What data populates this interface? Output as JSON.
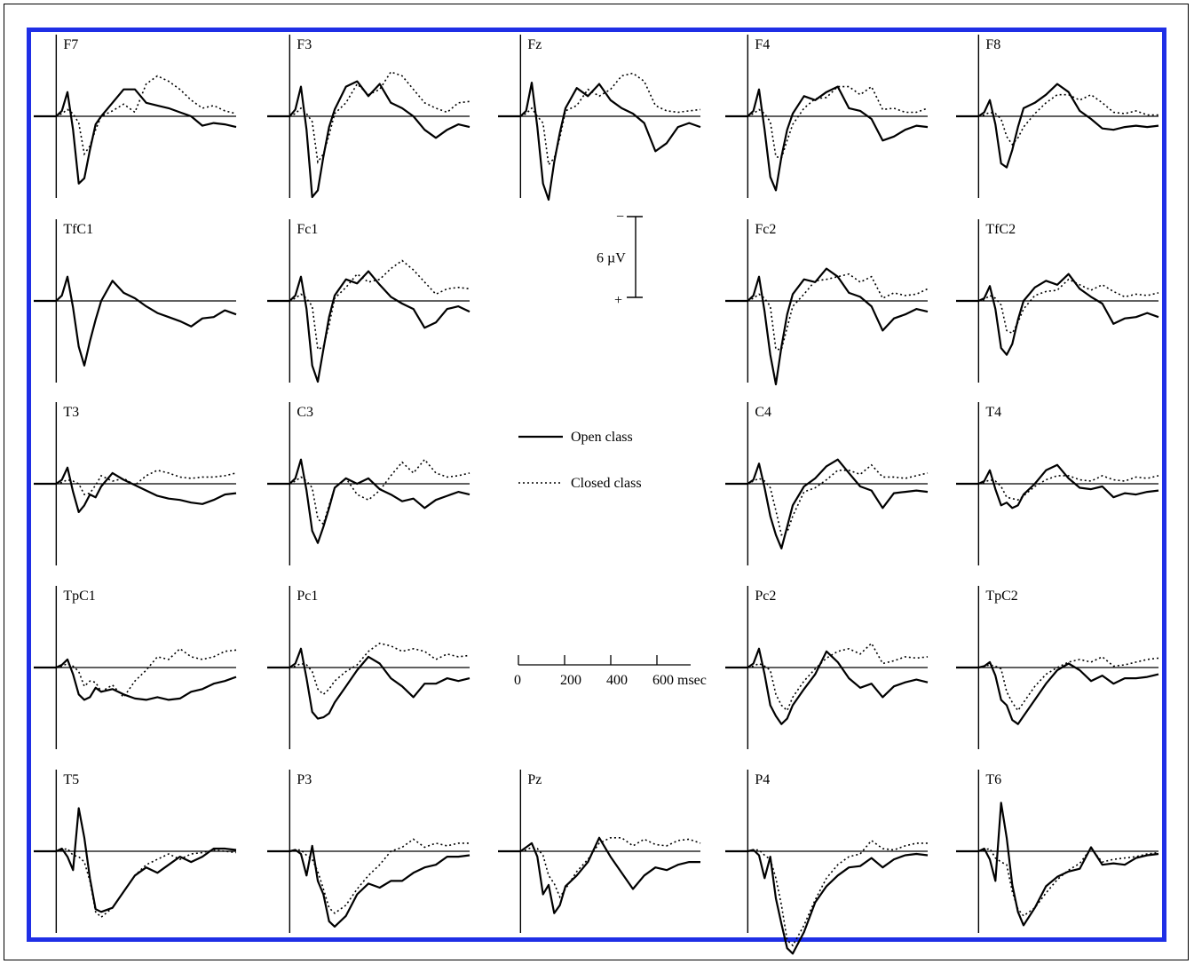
{
  "frame_color": "#1f2fe6",
  "ink_color": "#000000",
  "chart_data": {
    "type": "line",
    "description_free": true,
    "x_unit": "msec",
    "x_ticks": [
      0,
      200,
      400,
      600
    ],
    "x_tick_labels": [
      "0",
      "200",
      "400",
      "600 msec"
    ],
    "x_range": [
      -100,
      800
    ],
    "y_scale": {
      "label": "6 µV",
      "top_sign": "−",
      "bottom_sign": "+",
      "amplitude": 6
    },
    "negative_up": true,
    "legend": [
      {
        "name": "Open class",
        "style": "solid"
      },
      {
        "name": "Closed class",
        "style": "dotted"
      }
    ],
    "x": [
      -100,
      -50,
      0,
      25,
      50,
      75,
      100,
      125,
      150,
      175,
      200,
      250,
      300,
      350,
      400,
      450,
      500,
      550,
      600,
      650,
      700,
      750,
      800
    ],
    "panels": [
      {
        "label": "F7",
        "open": [
          0,
          0,
          0,
          -0.4,
          -1.8,
          1,
          5,
          4.6,
          2.5,
          0.6,
          0,
          -1,
          -2,
          -2,
          -1,
          -0.8,
          -0.6,
          -0.3,
          0,
          0.7,
          0.5,
          0.6,
          0.8
        ],
        "closed": [
          0,
          0,
          0,
          -0.2,
          -0.5,
          -0.2,
          0.5,
          2.8,
          2.2,
          1,
          0,
          -0.4,
          -0.9,
          -0.3,
          -2.4,
          -3,
          -2.6,
          -2,
          -1.2,
          -0.6,
          -0.8,
          -0.4,
          -0.2
        ]
      },
      {
        "label": "F3",
        "open": [
          0,
          0,
          0,
          -0.5,
          -2.2,
          1,
          6,
          5.5,
          3,
          0.8,
          -0.5,
          -2.2,
          -2.6,
          -1.5,
          -2.4,
          -1,
          -0.6,
          0,
          1,
          1.6,
          1,
          0.6,
          0.8
        ],
        "closed": [
          0,
          0,
          0,
          -0.2,
          -0.6,
          -0.2,
          0.4,
          3.4,
          2.8,
          1.4,
          -0.2,
          -1,
          -2.4,
          -1.6,
          -2,
          -3.3,
          -3,
          -2,
          -1,
          -0.6,
          -0.3,
          -1,
          -1.1
        ]
      },
      {
        "label": "Fz",
        "open": [
          0,
          0,
          0,
          -0.4,
          -2.5,
          0.8,
          5,
          6.2,
          3.4,
          1.2,
          -0.6,
          -2.1,
          -1.5,
          -2.4,
          -1.2,
          -0.6,
          -0.2,
          0.5,
          2.6,
          2,
          0.8,
          0.5,
          0.8
        ],
        "closed": [
          0,
          0,
          0,
          -0.2,
          -0.6,
          0,
          0.5,
          3.6,
          3.1,
          1.6,
          -0.4,
          -0.8,
          -2,
          -1.5,
          -2,
          -3,
          -3.2,
          -2.6,
          -0.8,
          -0.4,
          -0.3,
          -0.4,
          -0.5
        ]
      },
      {
        "label": "F4",
        "open": [
          0,
          0,
          0,
          -0.4,
          -2,
          1,
          4.5,
          5.5,
          3,
          1,
          -0.2,
          -1.5,
          -1.2,
          -1.8,
          -2.2,
          -0.6,
          -0.4,
          0.2,
          1.8,
          1.5,
          1,
          0.7,
          0.8
        ],
        "closed": [
          0,
          0,
          0,
          -0.2,
          -0.5,
          -0.2,
          0.4,
          3,
          3.1,
          1.8,
          0.6,
          -0.6,
          -1.3,
          -1.4,
          -2.2,
          -2.2,
          -1.6,
          -2.2,
          -0.5,
          -0.6,
          -0.3,
          -0.3,
          -0.6
        ]
      },
      {
        "label": "F8",
        "open": [
          0,
          0,
          0,
          -0.3,
          -1.2,
          0.6,
          3.5,
          3.8,
          2.5,
          0.8,
          -0.6,
          -1,
          -1.6,
          -2.4,
          -1.8,
          -0.4,
          0.2,
          0.9,
          1,
          0.8,
          0.7,
          0.8,
          0.7
        ],
        "closed": [
          0,
          0,
          0,
          -0.1,
          -0.3,
          -0.2,
          0.2,
          1.5,
          2.1,
          1.6,
          0.8,
          -0.2,
          -1,
          -1.6,
          -1.6,
          -1.2,
          -1.6,
          -1,
          -0.3,
          -0.2,
          -0.4,
          -0.1,
          -0.1
        ]
      },
      {
        "label": "TfC1",
        "open": [
          0,
          0,
          0,
          -0.4,
          -1.8,
          0.5,
          3.4,
          4.8,
          3,
          1.4,
          0,
          -1.5,
          -0.6,
          -0.2,
          0.4,
          0.9,
          1.2,
          1.5,
          1.9,
          1.3,
          1.2,
          0.7,
          1
        ]
      },
      {
        "label": "Fc1",
        "open": [
          0,
          0,
          0,
          -0.4,
          -1.8,
          0.6,
          4.8,
          6,
          3.6,
          1.2,
          -0.4,
          -1.6,
          -1.3,
          -2.2,
          -1.2,
          -0.3,
          0.2,
          0.6,
          2,
          1.6,
          0.6,
          0.4,
          0.8
        ],
        "closed": [
          0,
          0,
          0,
          -0.2,
          -0.5,
          -0.2,
          0.4,
          3.6,
          3.4,
          1.8,
          -0.2,
          -1,
          -2,
          -1.4,
          -1.6,
          -2.4,
          -3,
          -2.3,
          -1.4,
          -0.5,
          -0.9,
          -1,
          -0.9
        ]
      },
      {
        "label": "Fc2",
        "open": [
          0,
          0,
          0,
          -0.4,
          -1.8,
          0.8,
          4,
          6.2,
          3.4,
          1,
          -0.5,
          -1.6,
          -1.4,
          -2.4,
          -1.8,
          -0.6,
          -0.3,
          0.4,
          2.2,
          1.3,
          1,
          0.6,
          0.8
        ],
        "closed": [
          0,
          0,
          0,
          -0.2,
          -0.5,
          -0.2,
          0.4,
          3.6,
          3.6,
          2,
          0.4,
          -0.5,
          -1.5,
          -1.6,
          -1.8,
          -2,
          -1.4,
          -1.8,
          -0.2,
          -0.6,
          -0.4,
          -0.5,
          -0.9
        ]
      },
      {
        "label": "TfC2",
        "open": [
          0,
          0,
          0,
          -0.2,
          -1.1,
          0.6,
          3.5,
          4,
          3.2,
          1.4,
          0,
          -1,
          -1.5,
          -1.2,
          -2,
          -0.9,
          -0.3,
          0.2,
          1.7,
          1.3,
          1.2,
          0.9,
          1.2
        ],
        "closed": [
          0,
          0,
          0,
          -0.1,
          -0.4,
          -0.2,
          0.3,
          2.2,
          2.4,
          1.6,
          0.6,
          -0.4,
          -0.7,
          -0.8,
          -1.6,
          -1.2,
          -0.8,
          -1.2,
          -0.7,
          -0.3,
          -0.5,
          -0.4,
          -0.6
        ]
      },
      {
        "label": "T3",
        "open": [
          0,
          0,
          0,
          -0.3,
          -1.2,
          0.6,
          2.1,
          1.6,
          0.8,
          1,
          0.2,
          -0.8,
          -0.3,
          0.1,
          0.5,
          0.9,
          1.1,
          1.2,
          1.4,
          1.5,
          1.2,
          0.8,
          0.7
        ],
        "closed": [
          0,
          0,
          0,
          -0.1,
          -0.3,
          -0.2,
          0,
          0.8,
          0.7,
          0.1,
          -0.6,
          -0.2,
          -0.4,
          0.1,
          -0.6,
          -1,
          -0.8,
          -0.5,
          -0.4,
          -0.5,
          -0.5,
          -0.6,
          -0.8
        ]
      },
      {
        "label": "C3",
        "open": [
          0,
          0,
          0,
          -0.4,
          -1.8,
          0.5,
          3.5,
          4.4,
          3.2,
          1.8,
          0.3,
          -0.4,
          0,
          -0.4,
          0.4,
          0.8,
          1.3,
          1.1,
          1.8,
          1.2,
          0.9,
          0.6,
          0.8
        ],
        "closed": [
          0,
          0,
          0,
          -0.2,
          -0.5,
          -0.2,
          0.3,
          2.6,
          3,
          1.6,
          0.3,
          -0.4,
          0.8,
          1.2,
          0.5,
          -0.6,
          -1.6,
          -0.8,
          -1.8,
          -0.8,
          -0.5,
          -0.6,
          -0.8
        ]
      },
      {
        "label": "C4",
        "open": [
          0,
          0,
          0,
          -0.3,
          -1.5,
          0.3,
          2.4,
          3.8,
          4.8,
          3.2,
          1.6,
          0.2,
          -0.4,
          -1.3,
          -1.8,
          -0.8,
          0.2,
          0.5,
          1.8,
          0.7,
          0.6,
          0.5,
          0.6
        ],
        "closed": [
          0,
          0,
          0,
          -0.2,
          -0.4,
          -0.2,
          0.3,
          2,
          3.8,
          3.6,
          2.4,
          0.6,
          0.3,
          -0.3,
          -1,
          -1,
          -0.7,
          -1.4,
          -0.5,
          -0.5,
          -0.4,
          -0.6,
          -0.8
        ]
      },
      {
        "label": "T4",
        "open": [
          0,
          0,
          0,
          -0.2,
          -1,
          0.4,
          1.6,
          1.4,
          1.8,
          1.6,
          0.8,
          0,
          -1,
          -1.4,
          -0.4,
          0.3,
          0.4,
          0.2,
          1,
          0.7,
          0.8,
          0.6,
          0.5
        ],
        "closed": [
          0,
          0,
          0,
          -0.1,
          -0.3,
          -0.2,
          0.2,
          1,
          1.1,
          1.2,
          0.9,
          0.2,
          -0.3,
          -0.6,
          -0.6,
          -0.3,
          -0.2,
          -0.6,
          -0.3,
          -0.2,
          -0.5,
          -0.4,
          -0.6
        ]
      },
      {
        "label": "TpC1",
        "open": [
          0,
          0,
          0,
          -0.2,
          -0.6,
          0.5,
          2,
          2.4,
          2.2,
          1.5,
          1.8,
          1.6,
          2,
          2.3,
          2.4,
          2.2,
          2.4,
          2.3,
          1.8,
          1.6,
          1.2,
          1,
          0.7
        ],
        "closed": [
          0,
          0,
          0,
          -0.1,
          -0.3,
          -0.1,
          0.3,
          1.4,
          1,
          1.1,
          1.8,
          1.3,
          2.2,
          1,
          0.2,
          -0.8,
          -0.6,
          -1.4,
          -0.8,
          -0.6,
          -0.8,
          -1.2,
          -1.3
        ]
      },
      {
        "label": "Pc1",
        "open": [
          0,
          0,
          0,
          -0.3,
          -1.4,
          0.8,
          3.3,
          3.8,
          3.7,
          3.4,
          2.6,
          1.4,
          0.2,
          -0.8,
          -0.3,
          0.8,
          1.4,
          2.2,
          1.2,
          1.2,
          0.8,
          1,
          0.8
        ],
        "closed": [
          0,
          0,
          0,
          -0.1,
          -0.3,
          -0.2,
          0.3,
          1.6,
          2,
          1.6,
          1,
          0.3,
          -0.2,
          -1.2,
          -1.8,
          -1.6,
          -1.2,
          -1.4,
          -1.2,
          -0.6,
          -1,
          -0.8,
          -0.9
        ]
      },
      {
        "label": "Pc2",
        "open": [
          0,
          0,
          0,
          -0.3,
          -1.4,
          0.5,
          2.8,
          3.6,
          4.2,
          3.8,
          2.8,
          1.6,
          0.5,
          -1.2,
          -0.4,
          0.8,
          1.5,
          1.2,
          2.2,
          1.4,
          1.1,
          0.9,
          1.1
        ],
        "closed": [
          0,
          0,
          0,
          -0.1,
          -0.3,
          -0.1,
          0.2,
          2,
          2.8,
          3.2,
          2.2,
          1,
          0.1,
          -0.7,
          -1.2,
          -1.4,
          -1,
          -1.8,
          -0.3,
          -0.5,
          -0.8,
          -0.7,
          -0.8
        ]
      },
      {
        "label": "TpC2",
        "open": [
          0,
          0,
          0,
          -0.1,
          -0.4,
          0.6,
          2.4,
          2.8,
          3.9,
          4.2,
          3.6,
          2.4,
          1.2,
          0.2,
          -0.3,
          0.2,
          1,
          0.6,
          1.2,
          0.8,
          0.8,
          0.7,
          0.5
        ],
        "closed": [
          0,
          0,
          0,
          -0.1,
          -0.2,
          -0.1,
          0.1,
          1.8,
          2.6,
          3.2,
          2.6,
          1.4,
          0.5,
          0,
          -0.4,
          -0.6,
          -0.4,
          -0.8,
          -0.1,
          -0.2,
          -0.4,
          -0.6,
          -0.7
        ]
      },
      {
        "label": "T5",
        "open": [
          0,
          0,
          0,
          -0.2,
          0.4,
          1.4,
          -3.2,
          -1,
          2,
          4.3,
          4.5,
          4.2,
          3,
          1.8,
          1.2,
          1.6,
          1,
          0.4,
          0.8,
          0.4,
          -0.2,
          -0.2,
          -0.1
        ],
        "closed": [
          0,
          0,
          0,
          -0.1,
          -0.2,
          0.3,
          0.4,
          0.8,
          2.2,
          4.5,
          4.9,
          4.2,
          3,
          1.8,
          1,
          0.6,
          0.2,
          0.6,
          0.2,
          0.1,
          -0.1,
          0,
          0.1
        ]
      },
      {
        "label": "P3",
        "open": [
          0,
          0,
          0,
          -0.1,
          0.2,
          1.8,
          -0.4,
          2.2,
          3.2,
          5.2,
          5.6,
          4.8,
          3.2,
          2.4,
          2.7,
          2.2,
          2.2,
          1.6,
          1.2,
          1,
          0.4,
          0.4,
          0.3
        ],
        "closed": [
          0,
          0,
          0,
          -0.1,
          -0.1,
          0.3,
          0.6,
          1.5,
          2.8,
          4.2,
          4.6,
          4,
          2.8,
          1.8,
          1,
          0,
          -0.3,
          -0.9,
          -0.3,
          -0.6,
          -0.4,
          -0.6,
          -0.6
        ]
      },
      {
        "label": "Pz",
        "open": [
          0,
          0,
          0,
          -0.3,
          -0.6,
          0.4,
          3.2,
          2.5,
          4.6,
          4,
          2.6,
          1.8,
          0.8,
          -1,
          0.4,
          1.6,
          2.8,
          1.8,
          1.2,
          1.4,
          1,
          0.8,
          0.8
        ],
        "closed": [
          0,
          0,
          0,
          -0.1,
          -0.3,
          -0.2,
          0.3,
          1.8,
          2.4,
          3.4,
          2.8,
          1.5,
          0.6,
          -0.6,
          -1,
          -1,
          -0.4,
          -0.9,
          -0.5,
          -0.4,
          -0.8,
          -0.9,
          -0.6
        ]
      },
      {
        "label": "P4",
        "open": [
          0,
          0,
          0,
          -0.1,
          0.3,
          2,
          0.4,
          3.5,
          5.4,
          7.2,
          7.6,
          6,
          3.8,
          2.6,
          1.8,
          1.2,
          1.1,
          0.5,
          1.2,
          0.6,
          0.3,
          0.2,
          0.3
        ],
        "closed": [
          0,
          0,
          0,
          -0.1,
          -0.1,
          0.3,
          0.6,
          2,
          4,
          6.6,
          7,
          5.5,
          3.6,
          2,
          1,
          0.4,
          0.2,
          -0.8,
          -0.2,
          -0.1,
          -0.4,
          -0.6,
          -0.6
        ]
      },
      {
        "label": "T6",
        "open": [
          0,
          0,
          0,
          -0.2,
          0.6,
          2.2,
          -3.6,
          -1,
          2.5,
          4.5,
          5.5,
          4.2,
          2.6,
          1.9,
          1.5,
          1.3,
          -0.3,
          1,
          0.9,
          1,
          0.5,
          0.3,
          0.2
        ],
        "closed": [
          0,
          0,
          0,
          -0.1,
          -0.2,
          0.5,
          0.8,
          1,
          3,
          4.3,
          4.8,
          4.2,
          3.1,
          2.1,
          1.4,
          0.9,
          -0.2,
          0.8,
          0.6,
          0.5,
          0.4,
          0.2,
          0.1
        ]
      }
    ]
  }
}
